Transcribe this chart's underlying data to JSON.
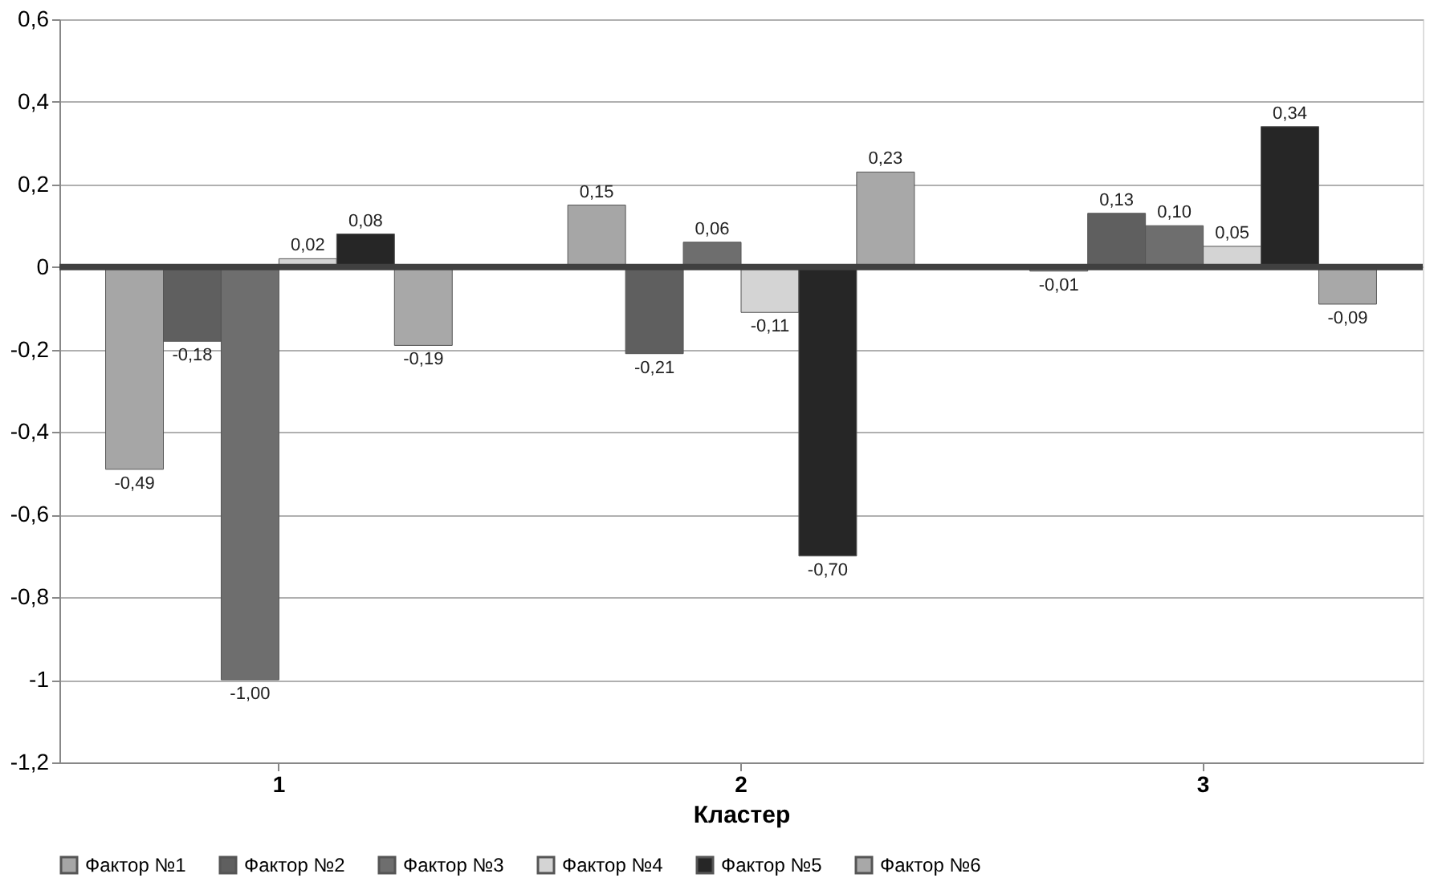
{
  "chart_data": {
    "type": "bar",
    "xlabel": "Кластер",
    "categories": [
      "1",
      "2",
      "3"
    ],
    "series": [
      {
        "name": "Фактор №1",
        "color": "#a6a6a6",
        "values": [
          -0.49,
          0.15,
          -0.01
        ],
        "value_labels": [
          "-0,49",
          "0,15",
          "-0,01"
        ]
      },
      {
        "name": "Фактор №2",
        "color": "#5f5f5f",
        "values": [
          -0.18,
          -0.21,
          0.13
        ],
        "value_labels": [
          "-0,18",
          "-0,21",
          "0,13"
        ]
      },
      {
        "name": "Фактор №3",
        "color": "#6e6e6e",
        "values": [
          -1.0,
          0.06,
          0.1
        ],
        "value_labels": [
          "-1,00",
          "0,06",
          "0,10"
        ]
      },
      {
        "name": "Фактор №4",
        "color": "#d4d4d4",
        "values": [
          0.02,
          -0.11,
          0.05
        ],
        "value_labels": [
          "0,02",
          "-0,11",
          "0,05"
        ]
      },
      {
        "name": "Фактор №5",
        "color": "#262626",
        "values": [
          0.08,
          -0.7,
          0.34
        ],
        "value_labels": [
          "0,08",
          "-0,70",
          "0,34"
        ]
      },
      {
        "name": "Фактор №6",
        "color": "#a8a8a8",
        "values": [
          -0.19,
          0.23,
          -0.09
        ],
        "value_labels": [
          "-0,19",
          "0,23",
          "-0,09"
        ]
      }
    ],
    "ylim": [
      -1.2,
      0.6
    ],
    "yticks": [
      {
        "value": -1.2,
        "label": "-1,2"
      },
      -1,
      {
        "value": -0.8,
        "label": "-0,8"
      },
      {
        "value": -0.6,
        "label": "-0,6"
      },
      {
        "value": -0.4,
        "label": "-0,4"
      },
      {
        "value": -0.2,
        "label": "-0,2"
      },
      0,
      {
        "value": 0.2,
        "label": "0,2"
      },
      {
        "value": 0.4,
        "label": "0,4"
      },
      {
        "value": 0.6,
        "label": "0,6"
      }
    ],
    "ref_lines": [
      {
        "axis": "y",
        "value": 0,
        "color": "#404040"
      }
    ],
    "grid": "y",
    "legend": "bottom"
  }
}
